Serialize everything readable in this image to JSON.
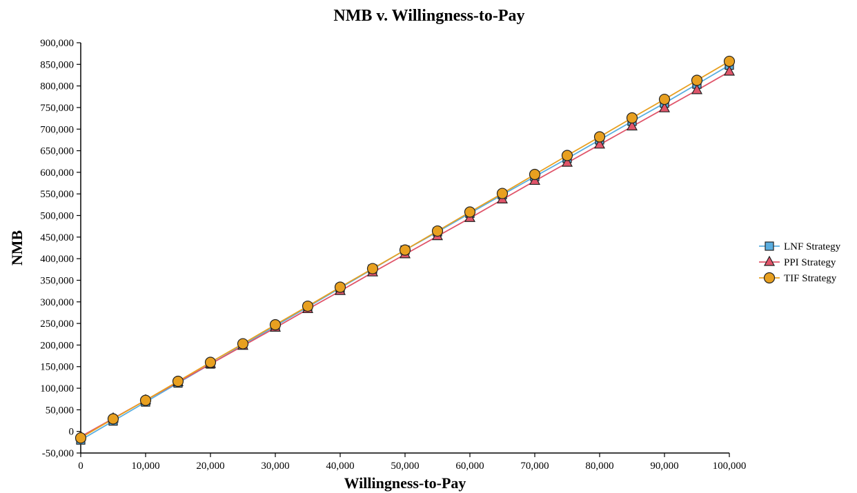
{
  "chart_data": {
    "type": "line",
    "title": "NMB v. Willingness-to-Pay",
    "xlabel": "Willingness-to-Pay",
    "ylabel": "NMB",
    "xlim": [
      0,
      100000
    ],
    "ylim": [
      -50000,
      900000
    ],
    "x_ticks": [
      "0",
      "10,000",
      "20,000",
      "30,000",
      "40,000",
      "50,000",
      "60,000",
      "70,000",
      "80,000",
      "90,000",
      "100,000"
    ],
    "y_ticks": [
      "-50,000",
      "0",
      "50,000",
      "100,000",
      "150,000",
      "200,000",
      "250,000",
      "300,000",
      "350,000",
      "400,000",
      "450,000",
      "500,000",
      "550,000",
      "600,000",
      "650,000",
      "700,000",
      "750,000",
      "800,000",
      "850,000",
      "900,000"
    ],
    "x": [
      0,
      5000,
      10000,
      15000,
      20000,
      25000,
      30000,
      35000,
      40000,
      45000,
      50000,
      55000,
      60000,
      65000,
      70000,
      75000,
      80000,
      85000,
      90000,
      95000,
      100000
    ],
    "series": [
      {
        "name": "LNF Strategy",
        "color": "#5aaee0",
        "marker": "square",
        "values": [
          -20000,
          24000,
          68000,
          112000,
          156000,
          200000,
          244000,
          288000,
          332000,
          376000,
          420000,
          462000,
          505000,
          548000,
          590000,
          632000,
          675000,
          718000,
          760000,
          804000,
          848000
        ]
      },
      {
        "name": "PPI Strategy",
        "color": "#e0556a",
        "marker": "triangle",
        "values": [
          -12000,
          30000,
          72000,
          114000,
          156000,
          198000,
          240000,
          283000,
          325000,
          368000,
          410000,
          452000,
          494000,
          537000,
          580000,
          622000,
          664000,
          706000,
          748000,
          790000,
          833000
        ]
      },
      {
        "name": "TIF Strategy",
        "color": "#e8a020",
        "marker": "circle",
        "values": [
          -15000,
          29000,
          72000,
          116000,
          160000,
          203000,
          247000,
          290000,
          334000,
          377000,
          420000,
          464000,
          508000,
          551000,
          595000,
          639000,
          682000,
          726000,
          769000,
          813000,
          857000
        ]
      }
    ],
    "grid": false,
    "legend_position": "right"
  }
}
